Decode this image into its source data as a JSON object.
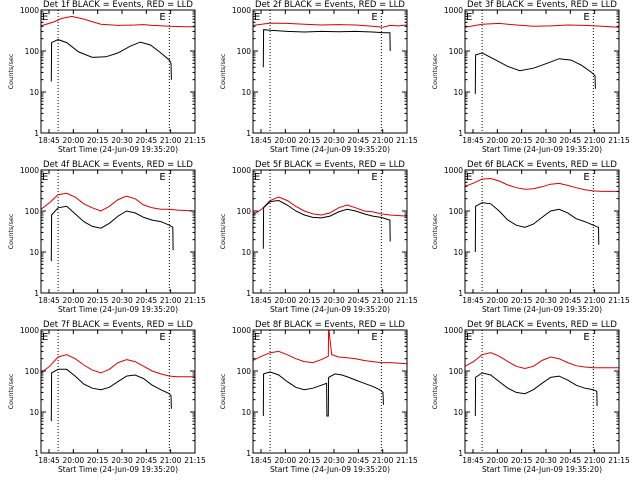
{
  "chart_data": {
    "type": "line",
    "layout": "3x3 grid of panels",
    "scale_y": "log",
    "ylim": [
      1,
      1000
    ],
    "yticks": [
      1,
      10,
      100,
      1000
    ],
    "ylabel": "Counts/sec",
    "xlabel": "Start Time (24-Jun-09 19:35:20)",
    "x_tick_labels": [
      "18:45",
      "20:00",
      "20:15",
      "20:30",
      "20:45",
      "21:00",
      "21:15"
    ],
    "x_range_minutes": [
      0,
      90
    ],
    "event_marker_label": "E",
    "event_marker_minutes": [
      10,
      75
    ],
    "series_colors": {
      "events": "#000000",
      "lld": "#dd0000"
    },
    "panels": [
      {
        "title": "Det 1f BLACK = Events, RED = LLD",
        "lld": {
          "t": [
            0,
            8,
            12,
            18,
            25,
            35,
            45,
            55,
            60,
            65,
            75,
            85,
            90
          ],
          "y": [
            410,
            520,
            620,
            700,
            600,
            450,
            420,
            430,
            440,
            420,
            400,
            390,
            390
          ]
        },
        "events": {
          "t": [
            6,
            6.2,
            10,
            15,
            22,
            30,
            38,
            45,
            52,
            58,
            64,
            70,
            75,
            76,
            76.2
          ],
          "y": [
            18,
            160,
            190,
            160,
            95,
            70,
            72,
            90,
            130,
            165,
            140,
            90,
            60,
            50,
            20
          ]
        }
      },
      {
        "title": "Det 2f BLACK = Events, RED = LLD",
        "lld": {
          "t": [
            0,
            10,
            20,
            30,
            40,
            50,
            60,
            70,
            76,
            80,
            85,
            90
          ],
          "y": [
            420,
            480,
            470,
            450,
            430,
            440,
            430,
            400,
            380,
            420,
            410,
            430
          ]
        },
        "events": {
          "t": [
            6,
            6.2,
            10,
            20,
            30,
            40,
            50,
            60,
            70,
            76,
            80,
            80.2
          ],
          "y": [
            40,
            330,
            320,
            300,
            290,
            300,
            295,
            300,
            290,
            280,
            280,
            100
          ]
        }
      },
      {
        "title": "Det 3f BLACK = Events, RED = LLD",
        "lld": {
          "t": [
            0,
            10,
            20,
            30,
            40,
            50,
            60,
            70,
            80,
            90
          ],
          "y": [
            380,
            450,
            470,
            430,
            400,
            410,
            430,
            420,
            400,
            380
          ]
        },
        "events": {
          "t": [
            6,
            6.2,
            10,
            18,
            25,
            32,
            40,
            48,
            55,
            62,
            68,
            74,
            76,
            76.2
          ],
          "y": [
            9,
            80,
            90,
            60,
            42,
            33,
            38,
            50,
            65,
            60,
            45,
            30,
            25,
            12
          ]
        }
      },
      {
        "title": "Det 4f BLACK = Events, RED = LLD",
        "lld": {
          "t": [
            0,
            5,
            10,
            15,
            20,
            25,
            30,
            35,
            40,
            45,
            50,
            55,
            60,
            65,
            70,
            75,
            80,
            90
          ],
          "y": [
            110,
            160,
            250,
            270,
            220,
            150,
            120,
            100,
            130,
            190,
            230,
            200,
            140,
            120,
            110,
            110,
            105,
            100
          ]
        },
        "events": {
          "t": [
            6,
            6.2,
            10,
            15,
            20,
            25,
            30,
            35,
            40,
            45,
            50,
            55,
            60,
            65,
            70,
            75,
            77,
            77.2
          ],
          "y": [
            6,
            80,
            120,
            130,
            85,
            55,
            42,
            38,
            50,
            75,
            100,
            90,
            70,
            60,
            55,
            45,
            40,
            11
          ]
        }
      },
      {
        "title": "Det 5f BLACK = Events, RED = LLD",
        "lld": {
          "t": [
            0,
            5,
            10,
            15,
            20,
            25,
            30,
            35,
            40,
            45,
            50,
            55,
            60,
            65,
            70,
            75,
            80,
            90
          ],
          "y": [
            80,
            110,
            180,
            220,
            180,
            130,
            100,
            85,
            80,
            90,
            120,
            140,
            120,
            100,
            95,
            85,
            80,
            75
          ]
        },
        "events": {
          "t": [
            6,
            6.2,
            10,
            15,
            20,
            25,
            30,
            35,
            40,
            45,
            50,
            55,
            60,
            65,
            70,
            75,
            80,
            80.2
          ],
          "y": [
            12,
            120,
            170,
            180,
            140,
            100,
            80,
            70,
            68,
            75,
            95,
            110,
            100,
            85,
            75,
            70,
            60,
            18
          ]
        }
      },
      {
        "title": "Det 6f BLACK = Events, RED = LLD",
        "lld": {
          "t": [
            0,
            5,
            10,
            15,
            20,
            25,
            30,
            35,
            40,
            45,
            50,
            55,
            60,
            65,
            70,
            75,
            80,
            90
          ],
          "y": [
            400,
            480,
            600,
            620,
            540,
            430,
            370,
            340,
            350,
            390,
            450,
            470,
            420,
            370,
            330,
            310,
            300,
            300
          ]
        },
        "events": {
          "t": [
            6,
            6.2,
            10,
            15,
            20,
            25,
            30,
            35,
            40,
            45,
            50,
            55,
            60,
            65,
            70,
            75,
            78,
            78.2
          ],
          "y": [
            10,
            130,
            160,
            150,
            100,
            60,
            45,
            40,
            48,
            70,
            100,
            110,
            90,
            65,
            55,
            45,
            40,
            15
          ]
        }
      },
      {
        "title": "Det 7f BLACK = Events, RED = LLD",
        "lld": {
          "t": [
            0,
            5,
            10,
            15,
            20,
            25,
            30,
            35,
            40,
            45,
            50,
            55,
            60,
            65,
            70,
            75,
            80,
            90
          ],
          "y": [
            90,
            130,
            220,
            250,
            200,
            140,
            105,
            90,
            110,
            160,
            190,
            170,
            130,
            100,
            85,
            75,
            72,
            72
          ]
        },
        "events": {
          "t": [
            6,
            6.2,
            10,
            15,
            20,
            25,
            30,
            35,
            40,
            45,
            50,
            55,
            60,
            65,
            70,
            75,
            76,
            76.2
          ],
          "y": [
            6,
            90,
            110,
            110,
            75,
            48,
            38,
            35,
            40,
            55,
            75,
            80,
            65,
            45,
            35,
            28,
            25,
            12
          ]
        }
      },
      {
        "title": "Det 8f BLACK = Events, RED = LLD",
        "lld": {
          "t": [
            0,
            5,
            10,
            15,
            20,
            25,
            30,
            35,
            40,
            44,
            44.2,
            44.4,
            46,
            50,
            55,
            60,
            65,
            70,
            75,
            80,
            90
          ],
          "y": [
            180,
            230,
            280,
            300,
            250,
            200,
            170,
            160,
            190,
            230,
            1000,
            1000,
            250,
            220,
            210,
            200,
            180,
            170,
            160,
            160,
            150
          ]
        },
        "events": {
          "t": [
            6,
            6.2,
            10,
            15,
            20,
            25,
            30,
            35,
            40,
            43,
            43.2,
            44,
            44.2,
            48,
            52,
            56,
            60,
            65,
            70,
            74,
            76,
            76.2
          ],
          "y": [
            8,
            85,
            95,
            80,
            55,
            40,
            35,
            38,
            45,
            50,
            8,
            8,
            70,
            85,
            80,
            70,
            60,
            50,
            42,
            35,
            30,
            15
          ]
        }
      },
      {
        "title": "Det 9f BLACK = Events, RED = LLD",
        "lld": {
          "t": [
            0,
            5,
            10,
            15,
            20,
            25,
            30,
            35,
            40,
            45,
            50,
            55,
            60,
            65,
            70,
            75,
            80,
            90
          ],
          "y": [
            130,
            170,
            250,
            280,
            230,
            170,
            130,
            115,
            130,
            180,
            220,
            200,
            160,
            135,
            125,
            120,
            120,
            120
          ]
        },
        "events": {
          "t": [
            6,
            6.2,
            10,
            15,
            20,
            25,
            30,
            35,
            40,
            45,
            50,
            55,
            60,
            65,
            70,
            75,
            77,
            77.2
          ],
          "y": [
            8,
            70,
            90,
            80,
            55,
            38,
            30,
            28,
            35,
            50,
            70,
            75,
            60,
            45,
            38,
            35,
            32,
            14
          ]
        }
      }
    ]
  }
}
